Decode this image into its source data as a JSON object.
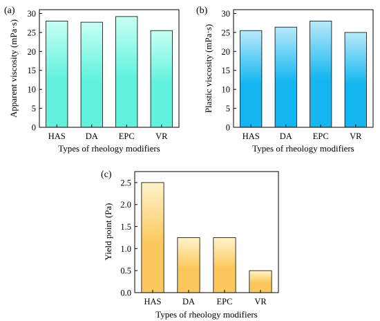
{
  "chart_data": [
    {
      "panel_label": "(a)",
      "type": "bar",
      "categories": [
        "HAS",
        "DA",
        "EPC",
        "VR"
      ],
      "values": [
        28.0,
        27.7,
        29.2,
        25.5
      ],
      "xlabel": "Types of rheology modifiers",
      "ylabel": "Apparent viscosity (mPa·s)",
      "ylim": [
        0,
        31
      ],
      "yticks": [
        0,
        5,
        10,
        15,
        20,
        25,
        30
      ],
      "ytick_labels": [
        "0",
        "5",
        "10",
        "15",
        "20",
        "25",
        "30"
      ],
      "gradient": [
        "#61f2dd",
        "#c8fff4"
      ],
      "grid": false
    },
    {
      "panel_label": "(b)",
      "type": "bar",
      "categories": [
        "HAS",
        "DA",
        "EPC",
        "VR"
      ],
      "values": [
        25.5,
        26.4,
        28.0,
        25.0
      ],
      "xlabel": "Types of rheology modifiers",
      "ylabel": "Plastic viscosity (mPa·s)",
      "ylim": [
        0,
        31
      ],
      "yticks": [
        0,
        5,
        10,
        15,
        20,
        25,
        30
      ],
      "ytick_labels": [
        "0",
        "5",
        "10",
        "15",
        "20",
        "25",
        "30"
      ],
      "gradient": [
        "#13b6f0",
        "#b9e9fa"
      ],
      "grid": false
    },
    {
      "panel_label": "(c)",
      "type": "bar",
      "categories": [
        "HAS",
        "DA",
        "EPC",
        "VR"
      ],
      "values": [
        2.5,
        1.25,
        1.25,
        0.5
      ],
      "xlabel": "Types of rheology modifiers",
      "ylabel": "Yield point (Pa)",
      "ylim": [
        0,
        2.75
      ],
      "yticks": [
        0,
        0.5,
        1.0,
        1.5,
        2.0,
        2.5
      ],
      "ytick_labels": [
        "0.0",
        "0.5",
        "1.0",
        "1.5",
        "2.0",
        "2.5"
      ],
      "gradient": [
        "#fcc85e",
        "#fff3cc"
      ],
      "grid": false
    }
  ]
}
